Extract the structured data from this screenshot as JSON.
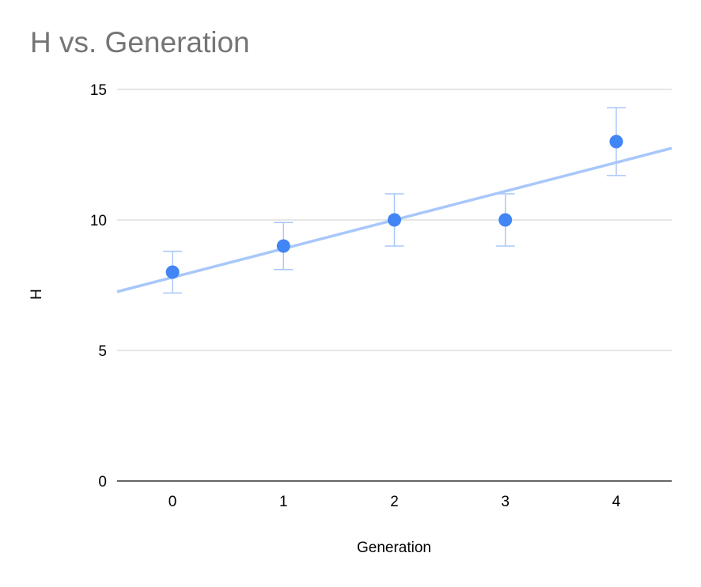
{
  "title": "H vs. Generation",
  "chart_data": {
    "type": "scatter",
    "title": "H vs. Generation",
    "xlabel": "Generation",
    "ylabel": "H",
    "xlim": [
      -0.5,
      4.5
    ],
    "ylim": [
      0,
      15
    ],
    "x_ticks": [
      0,
      1,
      2,
      3,
      4
    ],
    "y_ticks": [
      0,
      5,
      10,
      15
    ],
    "grid": true,
    "legend": "none",
    "series": [
      {
        "x": [
          0,
          1,
          2,
          3,
          4
        ],
        "y": [
          8,
          9,
          10,
          10,
          13
        ],
        "error_low": [
          7.2,
          8.1,
          9,
          9,
          11.7
        ],
        "error_high": [
          8.8,
          9.9,
          11,
          11,
          14.3
        ]
      }
    ],
    "trendline": {
      "type": "linear",
      "slope": 1.1,
      "intercept": 7.8
    },
    "colors": {
      "points": "#4285f4",
      "trendline": "#a8c7fa",
      "error_bars": "#a8c7fa",
      "grid": "#cccccc",
      "axis": "#333333"
    }
  }
}
